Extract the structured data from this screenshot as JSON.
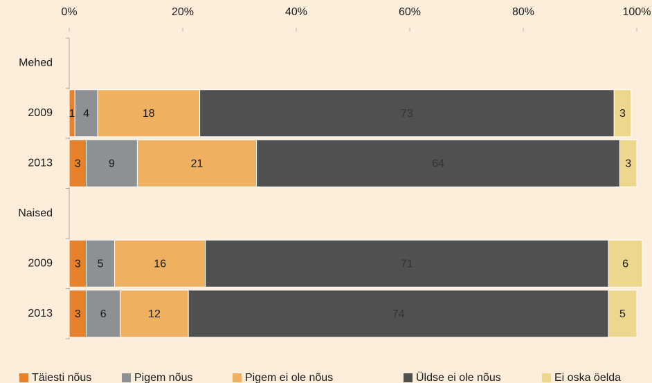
{
  "chart_data": {
    "type": "stacked-barh",
    "categories": [
      "Mehed",
      "2009",
      "2013",
      "Naised",
      "2009",
      "2013"
    ],
    "series": [
      {
        "name": "Täiesti nõus",
        "color": "#e8822a",
        "values": [
          null,
          1,
          3,
          null,
          3,
          3
        ]
      },
      {
        "name": "Pigem nõus",
        "color": "#8d9193",
        "values": [
          null,
          4,
          9,
          null,
          5,
          6
        ]
      },
      {
        "name": "Pigem ei ole nõus",
        "color": "#f0b062",
        "values": [
          null,
          18,
          21,
          null,
          16,
          12
        ]
      },
      {
        "name": "Üldse ei ole nõus",
        "color": "#505050",
        "values": [
          null,
          73,
          64,
          null,
          71,
          74
        ]
      },
      {
        "name": "Ei oska öelda",
        "color": "#ecd78c",
        "values": [
          null,
          3,
          3,
          null,
          6,
          5
        ]
      }
    ],
    "xlim": [
      0,
      100
    ],
    "xticks": [
      {
        "value": 0,
        "label": "0%"
      },
      {
        "value": 20,
        "label": "20%"
      },
      {
        "value": 40,
        "label": "40%"
      },
      {
        "value": 60,
        "label": "60%"
      },
      {
        "value": 80,
        "label": "80%"
      },
      {
        "value": 100,
        "label": "100%"
      }
    ],
    "legend": "bottom"
  }
}
